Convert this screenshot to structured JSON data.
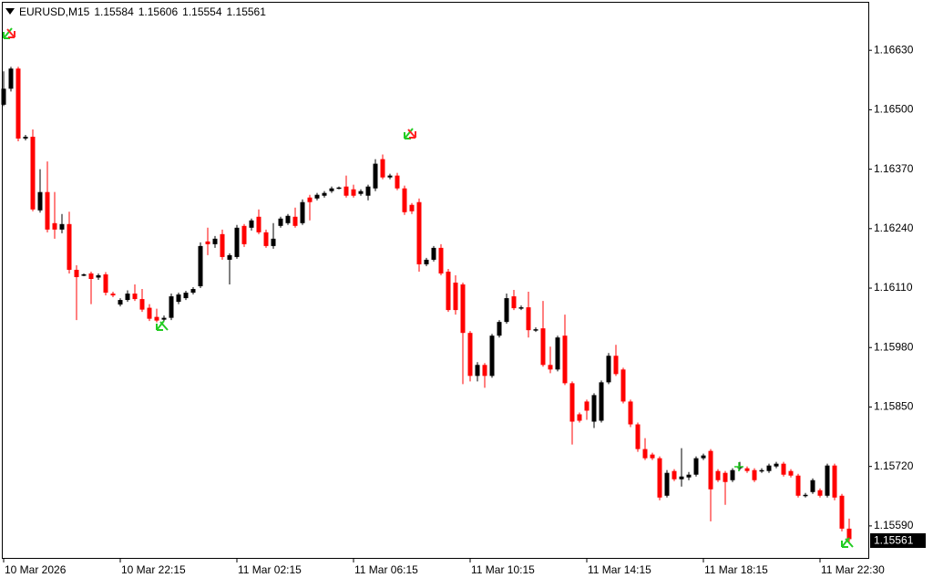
{
  "chart_data": {
    "type": "candlestick",
    "title": "EURUSD,M15",
    "up_color": "#000000",
    "down_color": "#ff0000",
    "categories": [
      "10 Mar 2026",
      null,
      null,
      null,
      null,
      null,
      null,
      null,
      null,
      null,
      null,
      null,
      null,
      null,
      null,
      null,
      "10 Mar 22:15",
      null,
      null,
      null,
      null,
      null,
      null,
      null,
      null,
      null,
      null,
      null,
      null,
      null,
      null,
      null,
      "11 Mar 02:15",
      null,
      null,
      null,
      null,
      null,
      null,
      null,
      null,
      null,
      null,
      null,
      null,
      null,
      null,
      null,
      "11 Mar 06:15",
      null,
      null,
      null,
      null,
      null,
      null,
      null,
      null,
      null,
      null,
      null,
      null,
      null,
      null,
      null,
      "11 Mar 10:15",
      null,
      null,
      null,
      null,
      null,
      null,
      null,
      null,
      null,
      null,
      null,
      null,
      null,
      null,
      null,
      "11 Mar 14:15",
      null,
      null,
      null,
      null,
      null,
      null,
      null,
      null,
      null,
      null,
      null,
      null,
      null,
      null,
      null,
      "11 Mar 18:15",
      null,
      null,
      null,
      null,
      null,
      null,
      null,
      null,
      null,
      null,
      null,
      null,
      null,
      null,
      null,
      "11 Mar 22:30",
      null,
      null,
      null,
      null
    ],
    "open": [
      1.16511,
      1.16546,
      1.1659,
      1.16437,
      1.16441,
      1.1628,
      1.1632,
      1.16252,
      1.16238,
      1.1625,
      1.1615,
      1.16138,
      1.16142,
      1.16133,
      1.1614,
      1.16098,
      1.16074,
      1.16084,
      1.16098,
      1.16086,
      1.16067,
      1.16047,
      1.16041,
      1.16045,
      1.1608,
      1.16088,
      1.161,
      1.16114,
      1.16212,
      1.16206,
      1.16228,
      1.16172,
      1.16178,
      1.16246,
      1.16242,
      1.16266,
      1.16232,
      1.16202,
      1.16246,
      1.16252,
      1.16266,
      1.16252,
      1.16308,
      1.16306,
      1.16312,
      1.16322,
      1.16328,
      1.16332,
      1.16326,
      1.16316,
      1.16312,
      1.16328,
      1.16392,
      1.16352,
      1.16356,
      1.16328,
      1.16292,
      1.16298,
      1.16162,
      1.16172,
      1.16198,
      1.16146,
      1.16122,
      1.16118,
      1.16012,
      1.15918,
      1.15942,
      1.15918,
      1.16006,
      1.16036,
      1.16092,
      1.16066,
      1.16068,
      1.16018,
      1.16022,
      1.15942,
      1.15932,
      1.16006,
      1.15902,
      1.15834,
      1.15862,
      1.15818,
      1.1582,
      1.15904,
      1.15962,
      1.15932,
      1.15862,
      1.15812,
      1.15758,
      1.15746,
      1.15738,
      1.15656,
      1.1571,
      1.15692,
      1.15696,
      1.15702,
      1.15738,
      1.15754,
      1.1571,
      1.15706,
      1.1569,
      1.15716,
      1.15716,
      1.15712,
      1.1571,
      1.1571,
      1.1572,
      1.15726,
      1.1571,
      1.157,
      1.15656,
      1.15664,
      1.15668,
      1.15656,
      1.15722,
      1.15656,
      1.15584
    ],
    "high": [
      1.16584,
      1.16594,
      1.16594,
      1.16445,
      1.16457,
      1.1637,
      1.16387,
      1.1632,
      1.16272,
      1.16277,
      1.1616,
      1.16142,
      1.16146,
      1.16142,
      1.16145,
      1.16102,
      1.16088,
      1.16105,
      1.16118,
      1.16108,
      1.16075,
      1.16065,
      1.1605,
      1.16098,
      1.161,
      1.16104,
      1.16112,
      1.1621,
      1.16242,
      1.16224,
      1.16238,
      1.16186,
      1.16248,
      1.1625,
      1.16262,
      1.16282,
      1.16238,
      1.16252,
      1.16266,
      1.16272,
      1.16286,
      1.16304,
      1.16314,
      1.16318,
      1.16322,
      1.16332,
      1.16332,
      1.16356,
      1.16336,
      1.16326,
      1.16336,
      1.16392,
      1.16402,
      1.1636,
      1.16362,
      1.16334,
      1.16296,
      1.16306,
      1.16176,
      1.16202,
      1.16206,
      1.16152,
      1.16138,
      1.16122,
      1.16016,
      1.15948,
      1.15946,
      1.1601,
      1.1604,
      1.16098,
      1.16106,
      1.16072,
      1.16102,
      1.16024,
      1.16082,
      1.15982,
      1.16006,
      1.16052,
      1.15906,
      1.15838,
      1.15866,
      1.1588,
      1.15908,
      1.15968,
      1.15986,
      1.15936,
      1.15866,
      1.15816,
      1.15782,
      1.1575,
      1.15742,
      1.15712,
      1.15714,
      1.1576,
      1.15708,
      1.15742,
      1.15748,
      1.15758,
      1.15714,
      1.1571,
      1.15716,
      1.1573,
      1.1572,
      1.15716,
      1.15716,
      1.15726,
      1.1573,
      1.1573,
      1.15714,
      1.15704,
      1.15662,
      1.15694,
      1.15672,
      1.15726,
      1.15726,
      1.1566,
      1.15606
    ],
    "low": [
      1.16508,
      1.1654,
      1.16431,
      1.16433,
      1.16278,
      1.16275,
      1.16232,
      1.16218,
      1.1623,
      1.16142,
      1.1604,
      1.16136,
      1.16075,
      1.16128,
      1.16094,
      1.1609,
      1.1607,
      1.1608,
      1.16082,
      1.16058,
      1.16038,
      1.16035,
      1.16038,
      1.1604,
      1.16075,
      1.16084,
      1.16096,
      1.1611,
      1.16182,
      1.16198,
      1.16172,
      1.16118,
      1.16174,
      1.162,
      1.16236,
      1.16228,
      1.16198,
      1.16196,
      1.16242,
      1.16248,
      1.16242,
      1.16248,
      1.16258,
      1.16302,
      1.16308,
      1.16318,
      1.16326,
      1.16308,
      1.16308,
      1.16312,
      1.16302,
      1.16322,
      1.16348,
      1.16348,
      1.16324,
      1.1627,
      1.16272,
      1.16146,
      1.16158,
      1.16168,
      1.16138,
      1.16058,
      1.16052,
      1.159,
      1.15906,
      1.15906,
      1.15892,
      1.15914,
      1.16002,
      1.16032,
      1.16062,
      1.16062,
      1.16002,
      1.16014,
      1.15938,
      1.15924,
      1.15928,
      1.15898,
      1.15768,
      1.15816,
      1.15822,
      1.15804,
      1.15816,
      1.159,
      1.15918,
      1.15858,
      1.15806,
      1.15752,
      1.15734,
      1.15734,
      1.15646,
      1.15652,
      1.15688,
      1.15676,
      1.1569,
      1.15698,
      1.15734,
      1.156,
      1.15686,
      1.15636,
      1.15686,
      1.15712,
      1.15706,
      1.15686,
      1.15706,
      1.15706,
      1.15716,
      1.15698,
      1.15696,
      1.15652,
      1.15652,
      1.1566,
      1.15652,
      1.15652,
      1.15646,
      1.15578,
      1.15554
    ],
    "close": [
      1.16546,
      1.1659,
      1.16437,
      1.16441,
      1.16282,
      1.1632,
      1.16238,
      1.16238,
      1.1625,
      1.1615,
      1.16134,
      1.1614,
      1.1613,
      1.16138,
      1.161,
      1.16094,
      1.16084,
      1.16098,
      1.16086,
      1.16063,
      1.16043,
      1.16039,
      1.16045,
      1.16092,
      1.16096,
      1.161,
      1.16108,
      1.16202,
      1.16206,
      1.16218,
      1.16178,
      1.16182,
      1.16242,
      1.16206,
      1.16258,
      1.16232,
      1.16202,
      1.16218,
      1.16262,
      1.16268,
      1.16246,
      1.16298,
      1.16298,
      1.16314,
      1.16318,
      1.16328,
      1.1633,
      1.16312,
      1.16312,
      1.16322,
      1.16332,
      1.16382,
      1.16352,
      1.16356,
      1.16328,
      1.16276,
      1.16278,
      1.16162,
      1.16172,
      1.16198,
      1.16142,
      1.16062,
      1.16062,
      1.16012,
      1.15918,
      1.15942,
      1.15918,
      1.16006,
      1.16036,
      1.16088,
      1.16066,
      1.16068,
      1.16018,
      1.1602,
      1.15942,
      1.15932,
      1.16002,
      1.15902,
      1.15818,
      1.1582,
      1.15842,
      1.15876,
      1.15904,
      1.15962,
      1.15922,
      1.15862,
      1.15812,
      1.15758,
      1.15738,
      1.15738,
      1.15652,
      1.15706,
      1.15692,
      1.15698,
      1.15702,
      1.15738,
      1.15744,
      1.1567,
      1.1569,
      1.15686,
      1.15712,
      1.1572,
      1.1571,
      1.1569,
      1.15712,
      1.15722,
      1.15726,
      1.15702,
      1.157,
      1.15656,
      1.15658,
      1.1569,
      1.15656,
      1.15722,
      1.15652,
      1.15584,
      1.15561
    ],
    "ylim": [
      1.1552,
      1.16734
    ],
    "yticks": [
      {
        "value": 1.1663,
        "label": "1.16630"
      },
      {
        "value": 1.165,
        "label": "1.16500"
      },
      {
        "value": 1.1637,
        "label": "1.16370"
      },
      {
        "value": 1.1624,
        "label": "1.16240"
      },
      {
        "value": 1.1611,
        "label": "1.16110"
      },
      {
        "value": 1.1598,
        "label": "1.15980"
      },
      {
        "value": 1.1585,
        "label": "1.15850"
      },
      {
        "value": 1.1572,
        "label": "1.15720"
      },
      {
        "value": 1.1559,
        "label": "1.15590"
      }
    ]
  }
}
